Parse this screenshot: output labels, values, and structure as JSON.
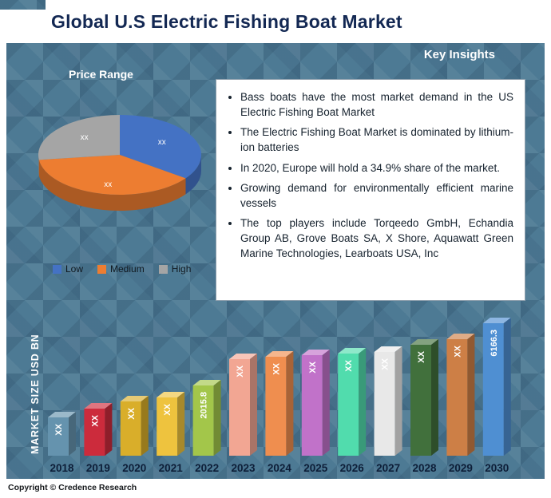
{
  "header": {
    "title": "Global U.S Electric Fishing Boat Market"
  },
  "key_insights": {
    "heading": "Key Insights",
    "bullets": [
      "Bass boats have the most market demand in the US Electric Fishing Boat Market",
      "The Electric Fishing Boat Market is dominated by lithium-ion batteries",
      "In 2020, Europe will hold a 34.9% share of the market.",
      "Growing demand for environmentally efficient marine vessels",
      "The top players include Torqeedo GmbH, Echandia Group AB, Grove Boats SA, X Shore, Aquawatt Green Marine Technologies, Learboats USA, Inc"
    ]
  },
  "footer": {
    "copyright": "Copyright © Credence Research"
  },
  "colors": {
    "background": "#4d7a94",
    "title_text": "#132853"
  },
  "chart_data": [
    {
      "type": "pie",
      "title": "Price Range",
      "labels": [
        "Low",
        "Medium",
        "High"
      ],
      "slice_text_labels": [
        "xx",
        "xx",
        "xx"
      ],
      "values_pct_estimated": [
        35,
        38,
        27
      ],
      "colors": [
        "#4472c4",
        "#ed7d31",
        "#a5a5a5"
      ],
      "legend_position": "bottom"
    },
    {
      "type": "bar",
      "categories": [
        "2018",
        "2019",
        "2020",
        "2021",
        "2022",
        "2023",
        "2024",
        "2025",
        "2026",
        "2027",
        "2028",
        "2029",
        "2030"
      ],
      "bar_value_labels": [
        "XX",
        "XX",
        "XX",
        "XX",
        "2015.8",
        "XX",
        "XX",
        "XX",
        "XX",
        "XX",
        "XX",
        "XX",
        "6166.3"
      ],
      "relative_heights_estimated": [
        48,
        59,
        68,
        73,
        88,
        121,
        124,
        126,
        128,
        130,
        139,
        146,
        166
      ],
      "ylabel": "MARKET SIZE USD BN",
      "colors": [
        "#6593ae",
        "#cc2b3c",
        "#d9ae2a",
        "#eec33e",
        "#a3c64a",
        "#f2a693",
        "#ef8e4f",
        "#c172c9",
        "#51dcad",
        "#e8e8e8",
        "#41703c",
        "#cd7f46",
        "#4f8fd2"
      ]
    }
  ]
}
